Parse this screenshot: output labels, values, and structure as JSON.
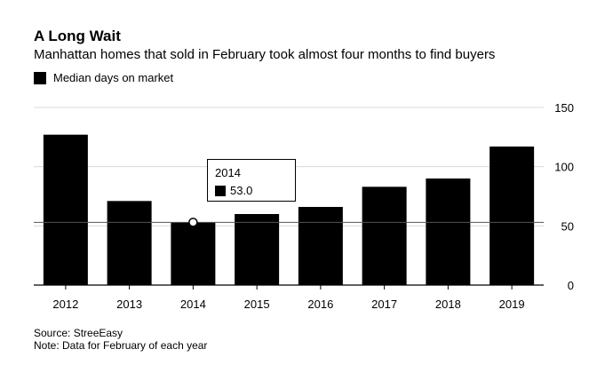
{
  "colors": {
    "bar": "#000000",
    "grid": "#d9d9d9",
    "axis": "#000000",
    "tooltip_marker": "#ffffff"
  },
  "footer": {
    "source": "Source: StreeEasy",
    "note": "Note: Data for February of each year"
  },
  "tooltip": {
    "year": "2014",
    "value": "53.0"
  },
  "chart_data": {
    "type": "bar",
    "title": "A Long Wait",
    "subtitle": "Manhattan homes that sold in February took almost four months to find buyers",
    "categories": [
      "2012",
      "2013",
      "2014",
      "2015",
      "2016",
      "2017",
      "2018",
      "2019"
    ],
    "series": [
      {
        "name": "Median days on market",
        "values": [
          127,
          71,
          53,
          60,
          66,
          83,
          90,
          117
        ]
      }
    ],
    "ylim": [
      0,
      150
    ],
    "yticks": [
      0,
      50,
      100,
      150
    ],
    "ytick_labels": [
      "0",
      "50",
      "100",
      "150"
    ],
    "reference_line": 53,
    "y_axis_side": "right",
    "grid": true,
    "legend_position": "top-left",
    "xlabel": "",
    "ylabel": ""
  }
}
